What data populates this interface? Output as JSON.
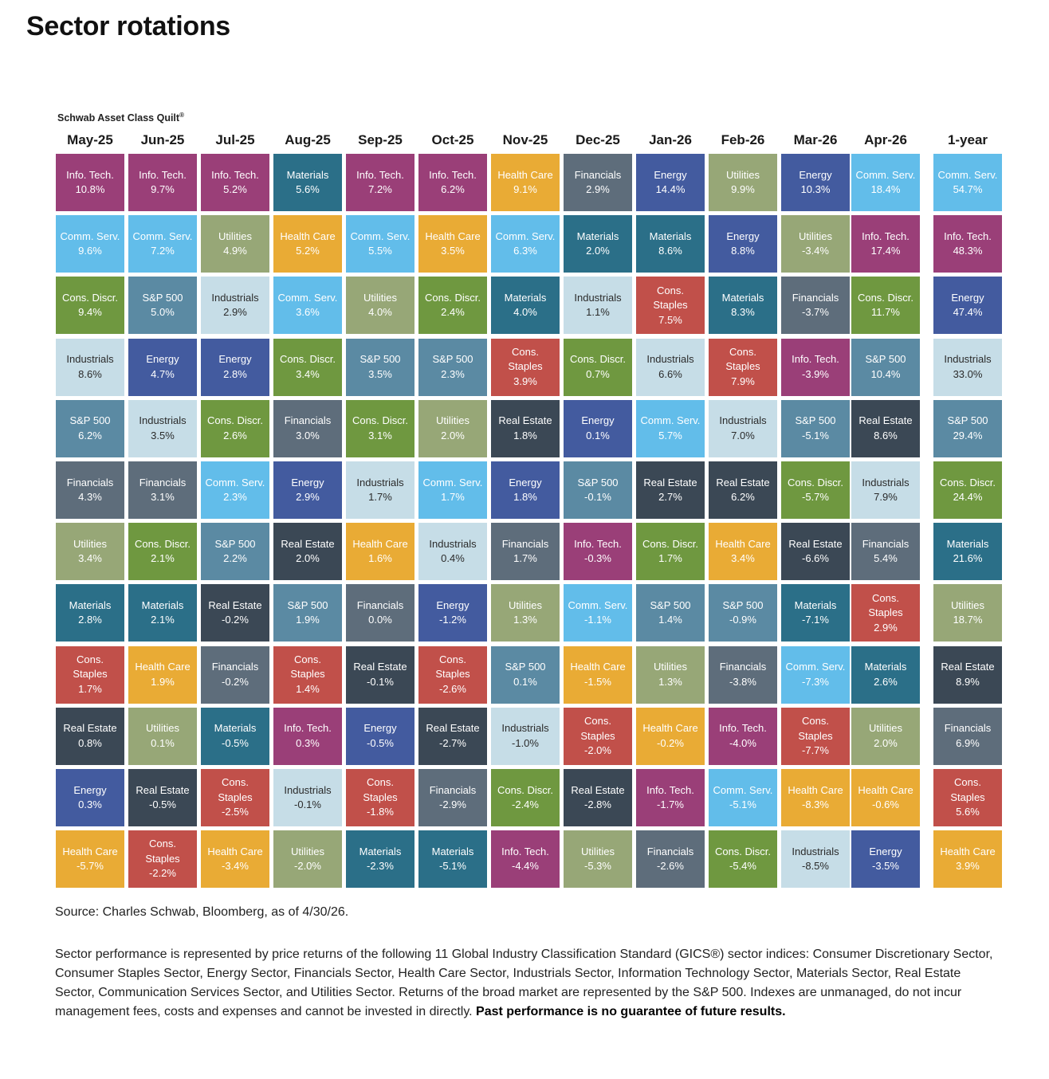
{
  "page_title": "Sector rotations",
  "quilt_label": "Schwab Asset Class Quilt",
  "quilt_label_mark": "®",
  "source_text": "Source: Charles Schwab, Bloomberg, as of 4/30/26.",
  "disclaimer_text": "Sector performance is represented by price returns of the following 11 Global Industry Classification Standard (GICS®) sector indices: Consumer Discretionary Sector, Consumer Staples Sector, Energy Sector, Financials Sector, Health Care Sector, Industrials Sector, Information Technology Sector, Materials Sector, Real Estate Sector, Communication Services Sector, and Utilities Sector. Returns of the broad market are represented by the S&P 500. Indexes are unmanaged, do not incur management fees, costs and expenses and cannot be invested in directly.",
  "disclaimer_bold": "Past performance is no guarantee of future results.",
  "colors": {
    "Info. Tech.": "#9a3f78",
    "Comm. Serv.": "#62bdea",
    "Cons. Discr.": "#6f9840",
    "Industrials": "#c6dde7",
    "S&P 500": "#5b8aa3",
    "Financials": "#5e6d7b",
    "Utilities": "#97a777",
    "Materials": "#2b6f88",
    "Cons. Staples": "#c1504a",
    "Real Estate": "#3b4855",
    "Energy": "#435b9f",
    "Health Care": "#e9ab35"
  },
  "dark_text_sectors": [
    "Industrials"
  ],
  "chart_data": {
    "type": "table",
    "title": "Schwab Asset Class Quilt",
    "columns": [
      {
        "period": "May-25",
        "rows": [
          {
            "sector": "Info. Tech.",
            "value": "10.8%"
          },
          {
            "sector": "Comm. Serv.",
            "value": "9.6%"
          },
          {
            "sector": "Cons. Discr.",
            "value": "9.4%"
          },
          {
            "sector": "Industrials",
            "value": "8.6%"
          },
          {
            "sector": "S&P 500",
            "value": "6.2%"
          },
          {
            "sector": "Financials",
            "value": "4.3%"
          },
          {
            "sector": "Utilities",
            "value": "3.4%"
          },
          {
            "sector": "Materials",
            "value": "2.8%"
          },
          {
            "sector": "Cons. Staples",
            "value": "1.7%"
          },
          {
            "sector": "Real Estate",
            "value": "0.8%"
          },
          {
            "sector": "Energy",
            "value": "0.3%"
          },
          {
            "sector": "Health Care",
            "value": "-5.7%"
          }
        ]
      },
      {
        "period": "Jun-25",
        "rows": [
          {
            "sector": "Info. Tech.",
            "value": "9.7%"
          },
          {
            "sector": "Comm. Serv.",
            "value": "7.2%"
          },
          {
            "sector": "S&P 500",
            "value": "5.0%"
          },
          {
            "sector": "Energy",
            "value": "4.7%"
          },
          {
            "sector": "Industrials",
            "value": "3.5%"
          },
          {
            "sector": "Financials",
            "value": "3.1%"
          },
          {
            "sector": "Cons. Discr.",
            "value": "2.1%"
          },
          {
            "sector": "Materials",
            "value": "2.1%"
          },
          {
            "sector": "Health Care",
            "value": "1.9%"
          },
          {
            "sector": "Utilities",
            "value": "0.1%"
          },
          {
            "sector": "Real Estate",
            "value": "-0.5%"
          },
          {
            "sector": "Cons. Staples",
            "value": "-2.2%"
          }
        ]
      },
      {
        "period": "Jul-25",
        "rows": [
          {
            "sector": "Info. Tech.",
            "value": "5.2%"
          },
          {
            "sector": "Utilities",
            "value": "4.9%"
          },
          {
            "sector": "Industrials",
            "value": "2.9%"
          },
          {
            "sector": "Energy",
            "value": "2.8%"
          },
          {
            "sector": "Cons. Discr.",
            "value": "2.6%"
          },
          {
            "sector": "Comm. Serv.",
            "value": "2.3%"
          },
          {
            "sector": "S&P 500",
            "value": "2.2%"
          },
          {
            "sector": "Real Estate",
            "value": "-0.2%"
          },
          {
            "sector": "Financials",
            "value": "-0.2%"
          },
          {
            "sector": "Materials",
            "value": "-0.5%"
          },
          {
            "sector": "Cons. Staples",
            "value": "-2.5%"
          },
          {
            "sector": "Health Care",
            "value": "-3.4%"
          }
        ]
      },
      {
        "period": "Aug-25",
        "rows": [
          {
            "sector": "Materials",
            "value": "5.6%"
          },
          {
            "sector": "Health Care",
            "value": "5.2%"
          },
          {
            "sector": "Comm. Serv.",
            "value": "3.6%"
          },
          {
            "sector": "Cons. Discr.",
            "value": "3.4%"
          },
          {
            "sector": "Financials",
            "value": "3.0%"
          },
          {
            "sector": "Energy",
            "value": "2.9%"
          },
          {
            "sector": "Real Estate",
            "value": "2.0%"
          },
          {
            "sector": "S&P 500",
            "value": "1.9%"
          },
          {
            "sector": "Cons. Staples",
            "value": "1.4%"
          },
          {
            "sector": "Info. Tech.",
            "value": "0.3%"
          },
          {
            "sector": "Industrials",
            "value": "-0.1%"
          },
          {
            "sector": "Utilities",
            "value": "-2.0%"
          }
        ]
      },
      {
        "period": "Sep-25",
        "rows": [
          {
            "sector": "Info. Tech.",
            "value": "7.2%"
          },
          {
            "sector": "Comm. Serv.",
            "value": "5.5%"
          },
          {
            "sector": "Utilities",
            "value": "4.0%"
          },
          {
            "sector": "S&P 500",
            "value": "3.5%"
          },
          {
            "sector": "Cons. Discr.",
            "value": "3.1%"
          },
          {
            "sector": "Industrials",
            "value": "1.7%"
          },
          {
            "sector": "Health Care",
            "value": "1.6%"
          },
          {
            "sector": "Financials",
            "value": "0.0%"
          },
          {
            "sector": "Real Estate",
            "value": "-0.1%"
          },
          {
            "sector": "Energy",
            "value": "-0.5%"
          },
          {
            "sector": "Cons. Staples",
            "value": "-1.8%"
          },
          {
            "sector": "Materials",
            "value": "-2.3%"
          }
        ]
      },
      {
        "period": "Oct-25",
        "rows": [
          {
            "sector": "Info. Tech.",
            "value": "6.2%"
          },
          {
            "sector": "Health Care",
            "value": "3.5%"
          },
          {
            "sector": "Cons. Discr.",
            "value": "2.4%"
          },
          {
            "sector": "S&P 500",
            "value": "2.3%"
          },
          {
            "sector": "Utilities",
            "value": "2.0%"
          },
          {
            "sector": "Comm. Serv.",
            "value": "1.7%"
          },
          {
            "sector": "Industrials",
            "value": "0.4%"
          },
          {
            "sector": "Energy",
            "value": "-1.2%"
          },
          {
            "sector": "Cons. Staples",
            "value": "-2.6%"
          },
          {
            "sector": "Real Estate",
            "value": "-2.7%"
          },
          {
            "sector": "Financials",
            "value": "-2.9%"
          },
          {
            "sector": "Materials",
            "value": "-5.1%"
          }
        ]
      },
      {
        "period": "Nov-25",
        "rows": [
          {
            "sector": "Health Care",
            "value": "9.1%"
          },
          {
            "sector": "Comm. Serv.",
            "value": "6.3%"
          },
          {
            "sector": "Materials",
            "value": "4.0%"
          },
          {
            "sector": "Cons. Staples",
            "value": "3.9%"
          },
          {
            "sector": "Real Estate",
            "value": "1.8%"
          },
          {
            "sector": "Energy",
            "value": "1.8%"
          },
          {
            "sector": "Financials",
            "value": "1.7%"
          },
          {
            "sector": "Utilities",
            "value": "1.3%"
          },
          {
            "sector": "S&P 500",
            "value": "0.1%"
          },
          {
            "sector": "Industrials",
            "value": "-1.0%"
          },
          {
            "sector": "Cons. Discr.",
            "value": "-2.4%"
          },
          {
            "sector": "Info. Tech.",
            "value": "-4.4%"
          }
        ]
      },
      {
        "period": "Dec-25",
        "rows": [
          {
            "sector": "Financials",
            "value": "2.9%"
          },
          {
            "sector": "Materials",
            "value": "2.0%"
          },
          {
            "sector": "Industrials",
            "value": "1.1%"
          },
          {
            "sector": "Cons. Discr.",
            "value": "0.7%"
          },
          {
            "sector": "Energy",
            "value": "0.1%"
          },
          {
            "sector": "S&P 500",
            "value": "-0.1%"
          },
          {
            "sector": "Info. Tech.",
            "value": "-0.3%"
          },
          {
            "sector": "Comm. Serv.",
            "value": "-1.1%"
          },
          {
            "sector": "Health Care",
            "value": "-1.5%"
          },
          {
            "sector": "Cons. Staples",
            "value": "-2.0%"
          },
          {
            "sector": "Real Estate",
            "value": "-2.8%"
          },
          {
            "sector": "Utilities",
            "value": "-5.3%"
          }
        ]
      },
      {
        "period": "Jan-26",
        "rows": [
          {
            "sector": "Energy",
            "value": "14.4%"
          },
          {
            "sector": "Materials",
            "value": "8.6%"
          },
          {
            "sector": "Cons. Staples",
            "value": "7.5%"
          },
          {
            "sector": "Industrials",
            "value": "6.6%"
          },
          {
            "sector": "Comm. Serv.",
            "value": "5.7%"
          },
          {
            "sector": "Real Estate",
            "value": "2.7%"
          },
          {
            "sector": "Cons. Discr.",
            "value": "1.7%"
          },
          {
            "sector": "S&P 500",
            "value": "1.4%"
          },
          {
            "sector": "Utilities",
            "value": "1.3%"
          },
          {
            "sector": "Health Care",
            "value": "-0.2%"
          },
          {
            "sector": "Info. Tech.",
            "value": "-1.7%"
          },
          {
            "sector": "Financials",
            "value": "-2.6%"
          }
        ]
      },
      {
        "period": "Feb-26",
        "rows": [
          {
            "sector": "Utilities",
            "value": "9.9%"
          },
          {
            "sector": "Energy",
            "value": "8.8%"
          },
          {
            "sector": "Materials",
            "value": "8.3%"
          },
          {
            "sector": "Cons. Staples",
            "value": "7.9%"
          },
          {
            "sector": "Industrials",
            "value": "7.0%"
          },
          {
            "sector": "Real Estate",
            "value": "6.2%"
          },
          {
            "sector": "Health Care",
            "value": "3.4%"
          },
          {
            "sector": "S&P 500",
            "value": "-0.9%"
          },
          {
            "sector": "Financials",
            "value": "-3.8%"
          },
          {
            "sector": "Info. Tech.",
            "value": "-4.0%"
          },
          {
            "sector": "Comm. Serv.",
            "value": "-5.1%"
          },
          {
            "sector": "Cons. Discr.",
            "value": "-5.4%"
          }
        ]
      },
      {
        "period": "Mar-26",
        "rows": [
          {
            "sector": "Energy",
            "value": "10.3%"
          },
          {
            "sector": "Utilities",
            "value": "-3.4%"
          },
          {
            "sector": "Financials",
            "value": "-3.7%"
          },
          {
            "sector": "Info. Tech.",
            "value": "-3.9%"
          },
          {
            "sector": "S&P 500",
            "value": "-5.1%"
          },
          {
            "sector": "Cons. Discr.",
            "value": "-5.7%"
          },
          {
            "sector": "Real Estate",
            "value": "-6.6%"
          },
          {
            "sector": "Materials",
            "value": "-7.1%"
          },
          {
            "sector": "Comm. Serv.",
            "value": "-7.3%"
          },
          {
            "sector": "Cons. Staples",
            "value": "-7.7%"
          },
          {
            "sector": "Health Care",
            "value": "-8.3%"
          },
          {
            "sector": "Industrials",
            "value": "-8.5%"
          }
        ]
      },
      {
        "period": "Apr-26",
        "rows": [
          {
            "sector": "Comm. Serv.",
            "value": "18.4%"
          },
          {
            "sector": "Info. Tech.",
            "value": "17.4%"
          },
          {
            "sector": "Cons. Discr.",
            "value": "11.7%"
          },
          {
            "sector": "S&P 500",
            "value": "10.4%"
          },
          {
            "sector": "Real Estate",
            "value": "8.6%"
          },
          {
            "sector": "Industrials",
            "value": "7.9%"
          },
          {
            "sector": "Financials",
            "value": "5.4%"
          },
          {
            "sector": "Cons. Staples",
            "value": "2.9%"
          },
          {
            "sector": "Materials",
            "value": "2.6%"
          },
          {
            "sector": "Utilities",
            "value": "2.0%"
          },
          {
            "sector": "Health Care",
            "value": "-0.6%"
          },
          {
            "sector": "Energy",
            "value": "-3.5%"
          }
        ]
      },
      {
        "period": "1-year",
        "rows": [
          {
            "sector": "Comm. Serv.",
            "value": "54.7%"
          },
          {
            "sector": "Info. Tech.",
            "value": "48.3%"
          },
          {
            "sector": "Energy",
            "value": "47.4%"
          },
          {
            "sector": "Industrials",
            "value": "33.0%"
          },
          {
            "sector": "S&P 500",
            "value": "29.4%"
          },
          {
            "sector": "Cons. Discr.",
            "value": "24.4%"
          },
          {
            "sector": "Materials",
            "value": "21.6%"
          },
          {
            "sector": "Utilities",
            "value": "18.7%"
          },
          {
            "sector": "Real Estate",
            "value": "8.9%"
          },
          {
            "sector": "Financials",
            "value": "6.9%"
          },
          {
            "sector": "Cons. Staples",
            "value": "5.6%"
          },
          {
            "sector": "Health Care",
            "value": "3.9%"
          }
        ]
      }
    ]
  }
}
